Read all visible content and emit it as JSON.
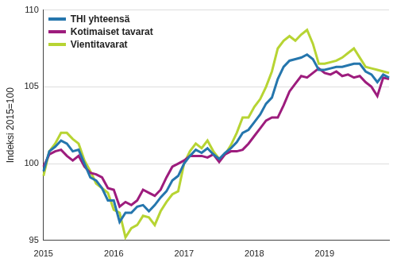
{
  "chart_data": {
    "type": "line",
    "y_label": "Indeksi 2015=100",
    "categories": [
      "2015",
      null,
      null,
      null,
      null,
      null,
      null,
      null,
      null,
      null,
      null,
      null,
      "2016",
      null,
      null,
      null,
      null,
      null,
      null,
      null,
      null,
      null,
      null,
      null,
      "2017",
      null,
      null,
      null,
      null,
      null,
      null,
      null,
      null,
      null,
      null,
      null,
      "2018",
      null,
      null,
      null,
      null,
      null,
      null,
      null,
      null,
      null,
      null,
      null,
      "2019",
      null,
      null,
      null,
      null,
      null,
      null,
      null,
      null,
      null,
      null,
      null
    ],
    "series": [
      {
        "name": "THI yhteensä",
        "color": "#2576ad",
        "values": [
          99.5,
          100.8,
          101.1,
          101.5,
          101.3,
          100.8,
          100.9,
          100.0,
          99.1,
          98.9,
          98.4,
          97.6,
          97.6,
          96.2,
          96.8,
          96.8,
          97.2,
          97.3,
          96.9,
          97.3,
          97.8,
          98.2,
          98.9,
          99.2,
          100.0,
          100.5,
          100.9,
          100.7,
          101.0,
          100.6,
          100.3,
          100.7,
          101.0,
          101.4,
          102.0,
          102.2,
          102.7,
          103.2,
          103.9,
          104.3,
          105.5,
          106.3,
          106.7,
          106.8,
          106.9,
          107.1,
          106.8,
          106.1,
          106.1,
          106.2,
          106.3,
          106.3,
          106.4,
          106.5,
          106.5,
          106.0,
          105.8,
          105.3,
          105.8,
          105.6
        ]
      },
      {
        "name": "Kotimaiset tavarat",
        "color": "#9d1c7d",
        "values": [
          99.8,
          100.6,
          100.8,
          100.9,
          100.5,
          100.2,
          100.5,
          99.8,
          99.4,
          99.3,
          99.1,
          98.4,
          98.3,
          97.2,
          97.5,
          97.3,
          97.6,
          98.3,
          98.1,
          97.9,
          98.3,
          99.1,
          99.8,
          100.0,
          100.2,
          100.5,
          100.5,
          100.5,
          100.4,
          100.6,
          100.1,
          100.6,
          100.8,
          100.8,
          100.9,
          101.3,
          101.8,
          102.3,
          102.8,
          103.0,
          103.0,
          103.8,
          104.7,
          105.2,
          105.7,
          105.6,
          105.9,
          106.2,
          105.9,
          105.8,
          106.0,
          105.7,
          105.8,
          105.6,
          105.7,
          105.3,
          105.0,
          104.4,
          105.6,
          105.5
        ]
      },
      {
        "name": "Vientitavarat",
        "color": "#b7d433",
        "values": [
          99.2,
          100.8,
          101.3,
          102.0,
          102.0,
          101.6,
          101.3,
          100.2,
          99.5,
          98.7,
          98.4,
          98.1,
          97.0,
          96.8,
          95.2,
          95.8,
          96.0,
          96.6,
          96.5,
          96.0,
          96.9,
          97.5,
          98.0,
          98.2,
          100.0,
          100.8,
          101.3,
          101.0,
          101.5,
          100.8,
          100.3,
          100.6,
          101.2,
          102.0,
          103.0,
          103.0,
          103.7,
          104.2,
          105.0,
          106.0,
          107.5,
          108.0,
          108.3,
          108.0,
          108.4,
          108.7,
          107.8,
          106.5,
          106.5,
          106.6,
          106.7,
          106.9,
          107.2,
          107.5,
          106.9,
          106.3,
          106.2,
          106.1,
          106.0,
          105.9
        ]
      }
    ],
    "ylim": [
      95,
      110
    ],
    "yticks": [
      95,
      100,
      105,
      110
    ],
    "grid": true,
    "legend": "upper left"
  }
}
